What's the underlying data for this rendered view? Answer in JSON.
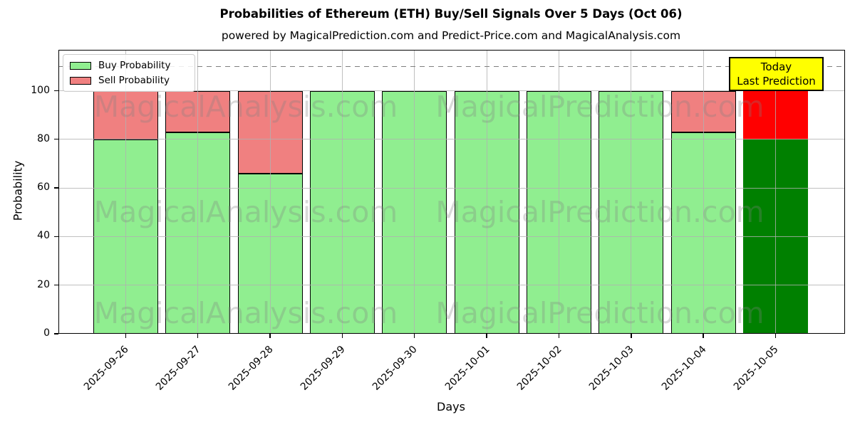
{
  "chart_data": {
    "type": "bar",
    "stacked": true,
    "title": "Probabilities of Ethereum (ETH) Buy/Sell Signals Over 5 Days (Oct 06)",
    "subtitle": "powered by MagicalPrediction.com and Predict-Price.com and MagicalAnalysis.com",
    "xlabel": "Days",
    "ylabel": "Probability",
    "categories": [
      "2025-09-26",
      "2025-09-27",
      "2025-09-28",
      "2025-09-29",
      "2025-09-30",
      "2025-10-01",
      "2025-10-02",
      "2025-10-03",
      "2025-10-04",
      "2025-10-05"
    ],
    "series": [
      {
        "name": "Buy Probability",
        "color": "#90ee90",
        "values": [
          80,
          83,
          66,
          100,
          100,
          100,
          100,
          100,
          83,
          80
        ]
      },
      {
        "name": "Sell Probability",
        "color": "#f08080",
        "values": [
          20,
          17,
          34,
          0,
          0,
          0,
          0,
          0,
          17,
          20
        ]
      }
    ],
    "today_bar": {
      "category": "2025-10-05",
      "buy_color": "#008000",
      "sell_color": "#ff0000"
    },
    "yticks": [
      0,
      20,
      40,
      60,
      80,
      100
    ],
    "ylim": [
      0,
      117
    ],
    "dashed_line_y": 110,
    "dashed_line_color": "#7f7f7f",
    "grid": true,
    "grid_color": "#b0b0b0",
    "legend_position": "upper-left",
    "annotation": {
      "lines": [
        "Today",
        "Last Prediction"
      ],
      "bg": "#ffff00",
      "border": "#000000"
    },
    "watermarks": [
      "MagicalAnalysis.com",
      "MagicalPrediction.com"
    ],
    "bar_edge_color": "#000000"
  }
}
